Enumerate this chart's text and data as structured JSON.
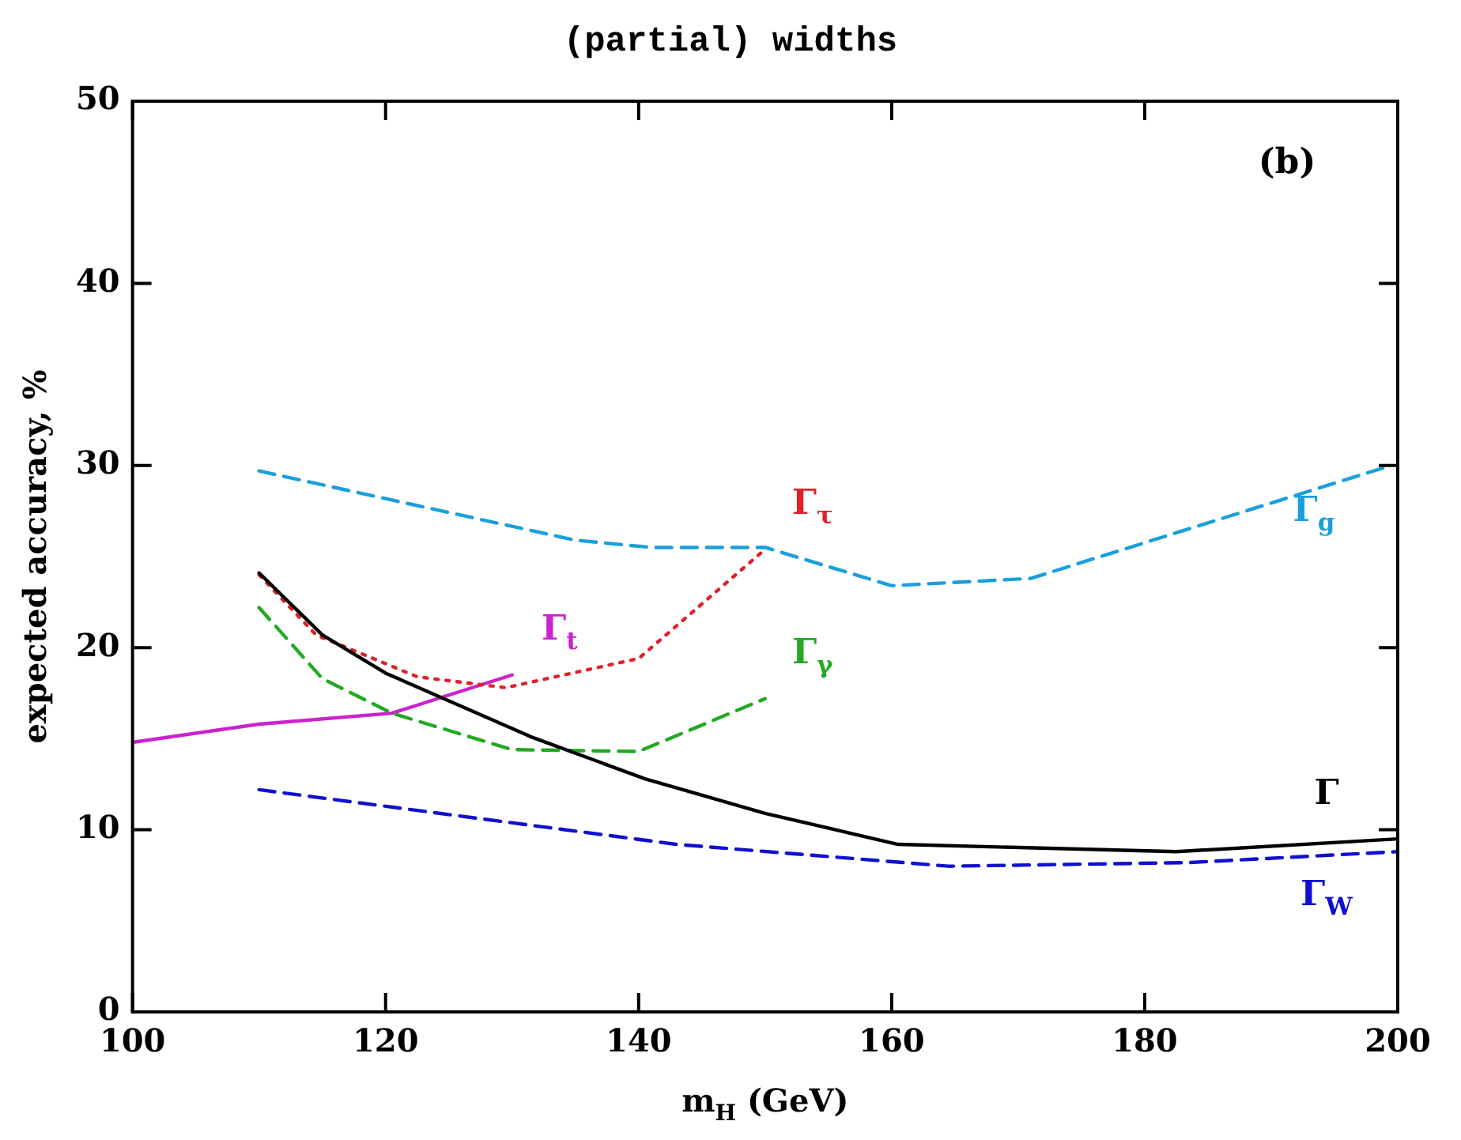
{
  "chart_data": {
    "type": "line",
    "title": "(partial) widths",
    "xlabel": "m$_{H}$ (GeV)",
    "ylabel": "expected accuracy, %",
    "xlim": [
      100,
      200
    ],
    "xticks": [
      100,
      120,
      140,
      160,
      180,
      200
    ],
    "ylim": [
      0,
      50
    ],
    "yticks": [
      0,
      10,
      20,
      30,
      40,
      50
    ],
    "grid": false,
    "legend": false,
    "series": [
      {
        "name": "Γ",
        "color": "#000000",
        "line_style": "solid",
        "x": [
          110,
          115,
          120,
          131.5,
          140.5,
          150,
          160.5,
          182.5,
          200
        ],
        "values": [
          24.1,
          20.7,
          18.6,
          15.1,
          12.8,
          10.9,
          9.2,
          8.8,
          9.5
        ]
      },
      {
        "name": "Γ$_{W}$",
        "color": "#1010d0",
        "line_style": "dashed",
        "x": [
          110,
          143,
          164.5,
          183.5,
          200
        ],
        "values": [
          12.2,
          9.2,
          8.0,
          8.2,
          8.8
        ]
      },
      {
        "name": "Γ$_{g}$",
        "color": "#1a9fdc",
        "line_style": "dashed",
        "x": [
          110,
          135,
          141,
          150,
          160,
          171,
          199
        ],
        "values": [
          29.7,
          25.9,
          25.5,
          25.5,
          23.4,
          23.8,
          29.9
        ]
      },
      {
        "name": "Γ$_{τ}$",
        "color": "#e0202a",
        "line_style": "dotted",
        "x": [
          110,
          114.5,
          122.5,
          129.5,
          140,
          150
        ],
        "values": [
          24,
          20.7,
          18.4,
          17.8,
          19.4,
          25.4
        ]
      },
      {
        "name": "Γ$_{γ}$",
        "color": "#22aa22",
        "line_style": "dashed",
        "x": [
          110,
          115,
          120.5,
          130,
          140,
          150
        ],
        "values": [
          22.2,
          18.3,
          16.4,
          14.4,
          14.3,
          17.2
        ]
      },
      {
        "name": "Γ$_{t}$",
        "color": "#cc22cc",
        "line_style": "solid",
        "x": [
          100,
          110,
          120.5,
          130
        ],
        "values": [
          14.8,
          15.8,
          16.4,
          18.5
        ]
      }
    ],
    "annotations": [
      "(b)"
    ]
  }
}
